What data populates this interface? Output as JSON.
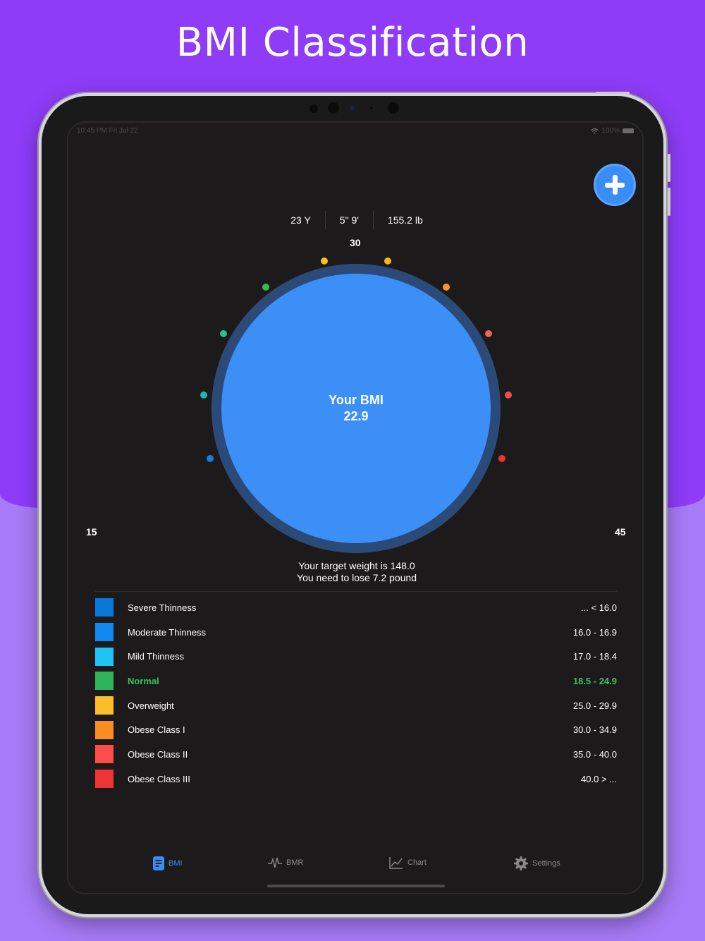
{
  "headline": "BMI Classification",
  "status_bar": {
    "time": "10:45 PM  Fri Jul 22",
    "battery": "100%"
  },
  "add_button_icon": "plus-icon",
  "stats": {
    "age": "23 Y",
    "height": "5\" 9'",
    "weight": "155.2 lb"
  },
  "gauge": {
    "top_label": "30",
    "min_label": "15",
    "max_label": "45",
    "title": "Your BMI",
    "value": "22.9",
    "value_numeric": 22.9
  },
  "target": {
    "line1": "Your target weight is 148.0",
    "line2": "You need to lose 7.2 pound"
  },
  "categories": [
    {
      "name": "Severe Thinness",
      "range": "... < 16.0",
      "color": "#0a78d8"
    },
    {
      "name": "Moderate Thinness",
      "range": "16.0 - 16.9",
      "color": "#1089f0"
    },
    {
      "name": "Mild Thinness",
      "range": "17.0 - 18.4",
      "color": "#1fc3f4"
    },
    {
      "name": "Normal",
      "range": "18.5 - 24.9",
      "color": "#2fb35a"
    },
    {
      "name": "Overweight",
      "range": "25.0 - 29.9",
      "color": "#fbbd2a"
    },
    {
      "name": "Obese Class I",
      "range": "30.0 - 34.9",
      "color": "#fb8c22"
    },
    {
      "name": "Obese Class II",
      "range": "35.0 - 40.0",
      "color": "#fb4e4a"
    },
    {
      "name": "Obese Class III",
      "range": "40.0 > ...",
      "color": "#ee3434"
    }
  ],
  "tabs": [
    {
      "label": "BMI",
      "icon": "document-icon"
    },
    {
      "label": "BMR",
      "icon": "pulse-icon"
    },
    {
      "label": "Chart",
      "icon": "line-chart-icon"
    },
    {
      "label": "Settings",
      "icon": "gear-icon"
    }
  ]
}
